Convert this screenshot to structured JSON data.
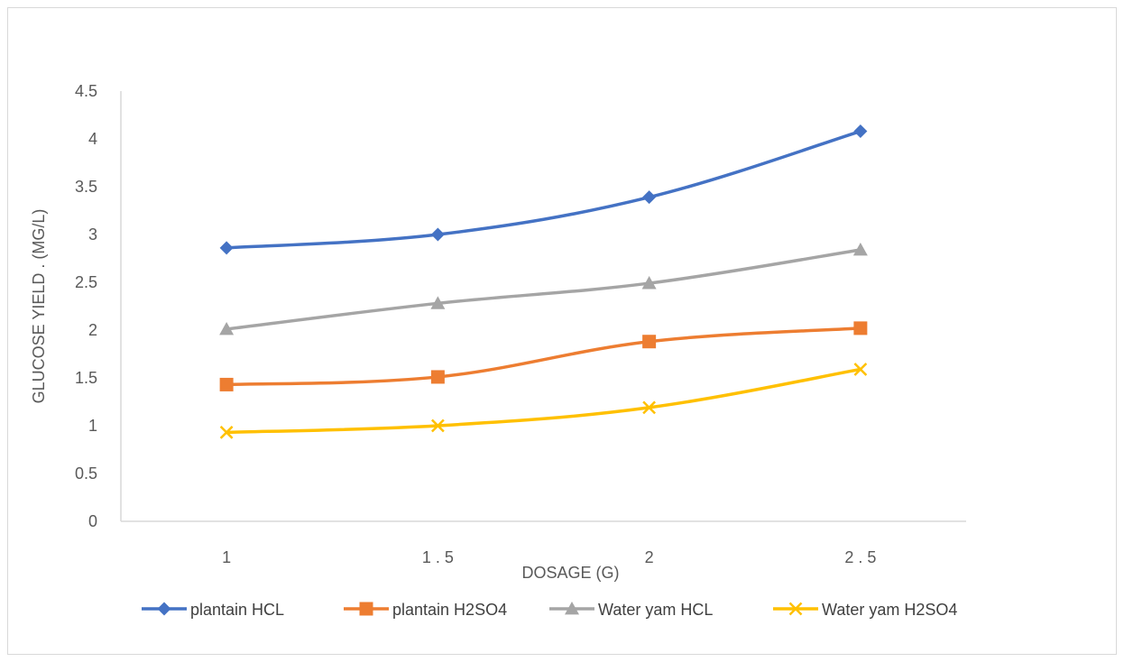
{
  "chart_data": {
    "type": "line",
    "title": "",
    "xlabel": "DOSAGE (G)",
    "ylabel": "GLUCOSE YIELD . (MG/L)",
    "categories": [
      "1",
      "1.5",
      "2",
      "2.5"
    ],
    "category_display": [
      "1",
      "1 . 5",
      "2",
      "2 . 5"
    ],
    "ylim": [
      0,
      4.5
    ],
    "yticks": [
      "0",
      "0.5",
      "1",
      "1.5",
      "2",
      "2.5",
      "3",
      "3.5",
      "4",
      "4.5"
    ],
    "grid": false,
    "legend_position": "bottom",
    "series": [
      {
        "name": "plantain HCL",
        "values": [
          2.86,
          3.0,
          3.39,
          4.08
        ],
        "color": "#4472C4",
        "marker": "diamond"
      },
      {
        "name": "plantain H2SO4",
        "values": [
          1.43,
          1.51,
          1.88,
          2.02
        ],
        "color": "#ED7D31",
        "marker": "square"
      },
      {
        "name": "Water yam HCL",
        "values": [
          2.01,
          2.28,
          2.49,
          2.84
        ],
        "color": "#A5A5A5",
        "marker": "triangle"
      },
      {
        "name": "Water yam H2SO4",
        "values": [
          0.93,
          1.0,
          1.19,
          1.59
        ],
        "color": "#FFC000",
        "marker": "x"
      }
    ]
  }
}
